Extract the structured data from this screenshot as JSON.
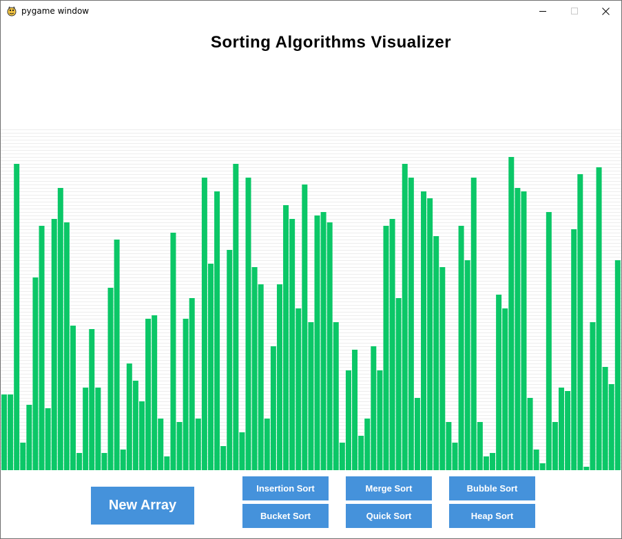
{
  "window": {
    "title": "pygame window"
  },
  "heading": "Sorting Algorithms Visualizer",
  "buttons": {
    "new_array": "New Array",
    "insertion": "Insertion Sort",
    "merge": "Merge Sort",
    "bubble": "Bubble Sort",
    "bucket": "Bucket Sort",
    "quick": "Quick Sort",
    "heap": "Heap Sort"
  },
  "colors": {
    "bar": "#0bc767",
    "button": "#4592db",
    "button_text": "#ffffff",
    "background": "#ffffff"
  },
  "chart_data": {
    "type": "bar",
    "values": [
      110,
      110,
      445,
      40,
      95,
      280,
      355,
      90,
      365,
      410,
      360,
      210,
      25,
      120,
      205,
      120,
      25,
      265,
      335,
      30,
      155,
      130,
      100,
      220,
      225,
      75,
      20,
      345,
      70,
      220,
      250,
      75,
      425,
      300,
      405,
      35,
      320,
      445,
      55,
      425,
      295,
      270,
      75,
      180,
      270,
      385,
      365,
      235,
      415,
      215,
      370,
      375,
      360,
      215,
      40,
      145,
      175,
      50,
      75,
      180,
      145,
      355,
      365,
      250,
      445,
      425,
      105,
      405,
      395,
      340,
      295,
      70,
      40,
      355,
      305,
      425,
      70,
      20,
      25,
      255,
      235,
      455,
      410,
      405,
      105,
      30,
      10,
      375,
      70,
      120,
      115,
      350,
      430,
      5,
      215,
      440,
      150,
      125,
      305
    ],
    "ymax": 495,
    "gridlines": true
  }
}
